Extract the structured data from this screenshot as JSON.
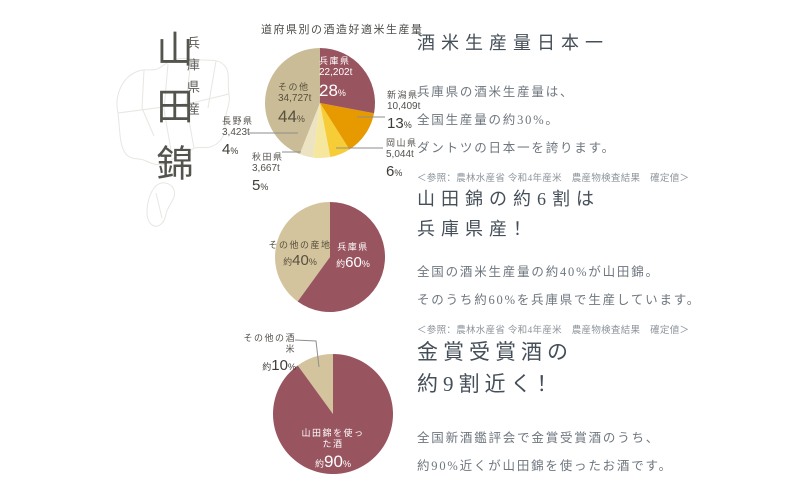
{
  "brand": {
    "origin": "兵庫県産",
    "product": "山田錦"
  },
  "palette": {
    "maroon": "#98545f",
    "orange": "#e69a00",
    "yellow": "#f7cd37",
    "pale_yellow": "#f6e79f",
    "cream": "#ece3c3",
    "tan": "#cabc96",
    "beige": "#d3c49e",
    "heading_text": "#454f59",
    "body_text": "#6e767e",
    "source_text": "#8d949b"
  },
  "chart_data": [
    {
      "type": "pie",
      "title": "道府県別の酒造好適米生産量",
      "legend_position": "around",
      "slices": [
        {
          "name": "兵庫県",
          "amount": "22,202t",
          "percent": 28,
          "pct_num": "28",
          "pct_unit": "%",
          "color": "#98545f"
        },
        {
          "name": "新潟県",
          "amount": "10,409t",
          "percent": 13,
          "pct_num": "13",
          "pct_unit": "%",
          "color": "#e69a00"
        },
        {
          "name": "岡山県",
          "amount": "5,044t",
          "percent": 6,
          "pct_num": "6",
          "pct_unit": "%",
          "color": "#f7cd37"
        },
        {
          "name": "秋田県",
          "amount": "3,667t",
          "percent": 5,
          "pct_num": "5",
          "pct_unit": "%",
          "color": "#f6e79f"
        },
        {
          "name": "長野県",
          "amount": "3,423t",
          "percent": 4,
          "pct_num": "4",
          "pct_unit": "%",
          "color": "#ece3c3"
        },
        {
          "name": "その他",
          "amount": "34,727t",
          "percent": 44,
          "pct_num": "44",
          "pct_unit": "%",
          "color": "#cabc96"
        }
      ]
    },
    {
      "type": "pie",
      "title": "",
      "slices": [
        {
          "name": "兵庫県",
          "percent": 60,
          "pct_prefix": "約",
          "pct_num": "60",
          "pct_unit": "%",
          "color": "#98545f"
        },
        {
          "name": "その他の産地",
          "percent": 40,
          "pct_prefix": "約",
          "pct_num": "40",
          "pct_unit": "%",
          "color": "#d3c49e"
        }
      ]
    },
    {
      "type": "pie",
      "title": "",
      "slices": [
        {
          "name": "山田錦を使った酒",
          "percent": 90,
          "pct_prefix": "約",
          "pct_num": "90",
          "pct_unit": "%",
          "color": "#98545f"
        },
        {
          "name": "その他の酒米",
          "percent": 10,
          "pct_prefix": "約",
          "pct_num": "10",
          "pct_unit": "%",
          "color": "#d3c49e"
        }
      ]
    }
  ],
  "sections": [
    {
      "heading_lines": [
        "酒米生産量日本一"
      ],
      "body_lines": [
        "兵庫県の酒米生産量は、",
        "全国生産量の約30%。",
        "ダントツの日本一を誇ります。"
      ],
      "source": "＜参照：農林水産省 令和4年産米　農産物検査結果　確定値＞"
    },
    {
      "heading_lines": [
        "山田錦の約6割は",
        "兵庫県産！"
      ],
      "body_lines": [
        "全国の酒米生産量の約40%が山田錦。",
        "そのうち約60%を兵庫県で生産しています。"
      ],
      "source": "＜参照：農林水産省 令和4年産米　農産物検査結果　確定値＞"
    },
    {
      "heading_lines": [
        "金賞受賞酒の",
        "約9割近く！"
      ],
      "body_lines": [
        "全国新酒鑑評会で金賞受賞酒のうち、",
        "約90%近くが山田錦を使ったお酒です。"
      ],
      "source": ""
    }
  ]
}
